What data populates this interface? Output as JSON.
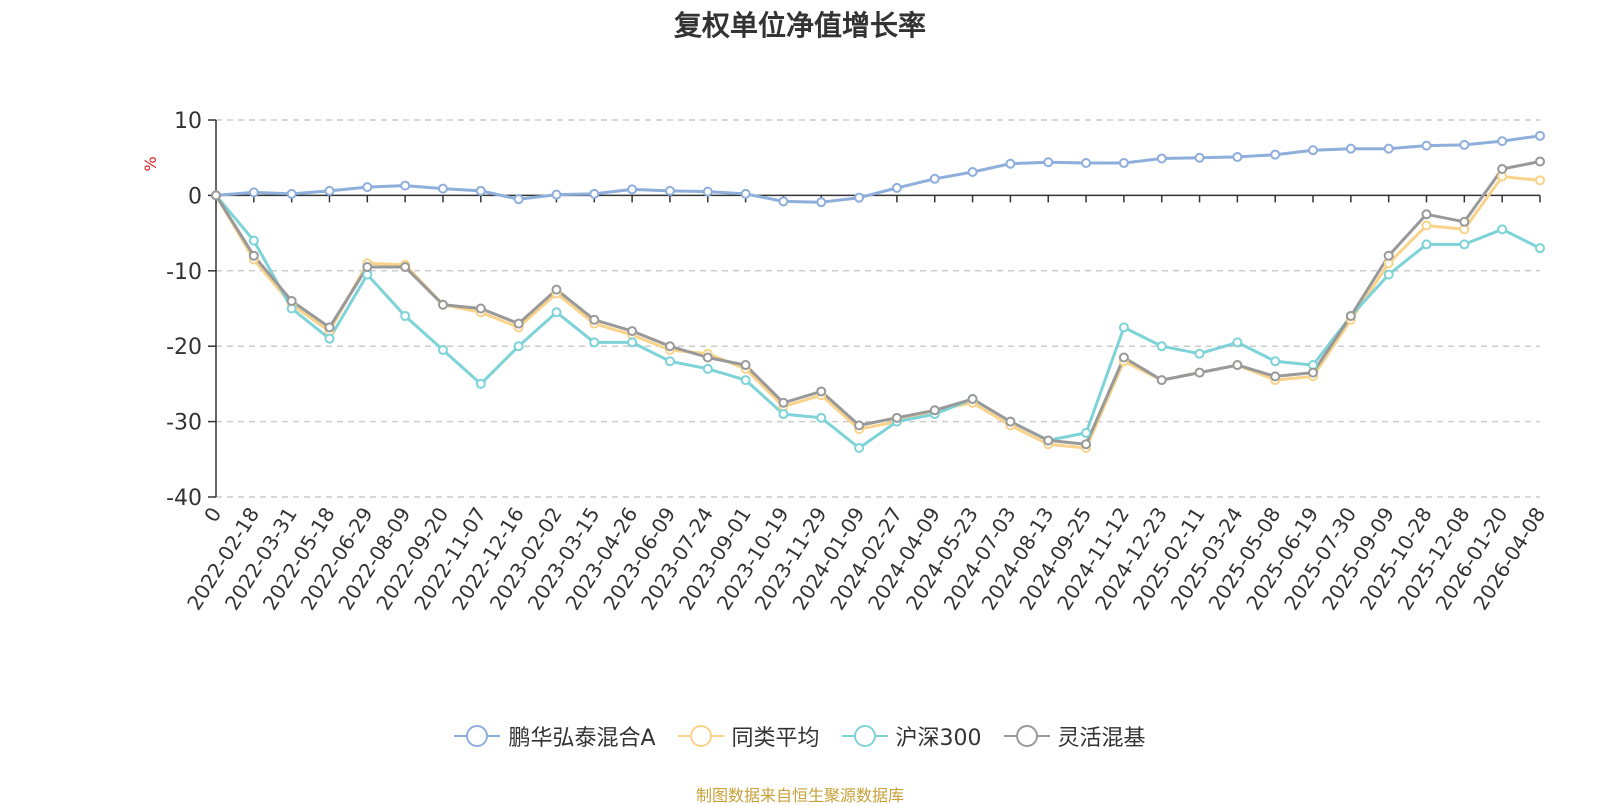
{
  "chart_data": {
    "type": "line",
    "title": "复权单位净值增长率",
    "ylabel": "%",
    "xlabel": "",
    "ylim": [
      -40,
      10
    ],
    "yticks": [
      10,
      0,
      -10,
      -20,
      -30,
      -40
    ],
    "grid": true,
    "legend_position": "bottom-center",
    "x_ticks": [
      "0",
      "2022-02-18",
      "2022-03-31",
      "2022-05-18",
      "2022-06-29",
      "2022-08-09",
      "2022-09-20",
      "2022-11-07",
      "2022-12-16",
      "2023-02-02",
      "2023-03-15",
      "2023-04-26",
      "2023-06-09",
      "2023-07-24",
      "2023-09-01",
      "2023-10-19",
      "2023-11-29",
      "2024-01-09",
      "2024-02-27",
      "2024-04-09",
      "2024-05-23",
      "2024-07-03",
      "2024-08-13",
      "2024-09-25",
      "2024-11-12",
      "2024-12-23",
      "2025-02-11",
      "2025-03-24",
      "2025-05-08",
      "2025-06-19",
      "2025-07-30",
      "2025-09-09",
      "2025-10-28",
      "2025-12-08",
      "2026-01-20",
      "2026-04-08"
    ],
    "series": [
      {
        "name": "鹏华弘泰混合A",
        "color": "#8eaedc",
        "values": [
          0,
          0.4,
          0.2,
          0.6,
          1.1,
          1.3,
          0.9,
          0.6,
          -0.5,
          0.1,
          0.2,
          0.8,
          0.6,
          0.5,
          0.2,
          -0.8,
          -0.9,
          -0.3,
          1.0,
          2.2,
          3.1,
          4.2,
          4.4,
          4.3,
          4.3,
          4.9,
          5.0,
          5.1,
          5.4,
          6.0,
          6.2,
          6.2,
          6.6,
          6.7,
          7.2,
          7.9
        ]
      },
      {
        "name": "同类平均",
        "color": "#f9d38a",
        "values": [
          0,
          -8.5,
          -14.5,
          -18.0,
          -9.0,
          -9.2,
          -14.5,
          -15.5,
          -17.5,
          -13.0,
          -17.0,
          -18.5,
          -20.5,
          -21.0,
          -23.0,
          -28.0,
          -26.5,
          -31.0,
          -30.0,
          -28.5,
          -27.5,
          -30.5,
          -33.0,
          -33.5,
          -22.0,
          -24.5,
          -23.5,
          -22.5,
          -24.5,
          -24.0,
          -16.5,
          -9.0,
          -4.0,
          -4.5,
          2.5,
          2.0
        ]
      },
      {
        "name": "沪深300",
        "color": "#7dd3d8",
        "values": [
          0,
          -6.0,
          -15.0,
          -19.0,
          -10.5,
          -16.0,
          -20.5,
          -25.0,
          -20.0,
          -15.5,
          -19.5,
          -19.5,
          -22.0,
          -23.0,
          -24.5,
          -29.0,
          -29.5,
          -33.5,
          -30.0,
          -29.0,
          -27.0,
          -30.0,
          -32.5,
          -31.5,
          -17.5,
          -20.0,
          -21.0,
          -19.5,
          -22.0,
          -22.5,
          -16.0,
          -10.5,
          -6.5,
          -6.5,
          -4.5,
          -7.0
        ]
      },
      {
        "name": "灵活混基",
        "color": "#999999",
        "values": [
          0,
          -8.0,
          -14.0,
          -17.5,
          -9.5,
          -9.5,
          -14.5,
          -15.0,
          -17.0,
          -12.5,
          -16.5,
          -18.0,
          -20.0,
          -21.5,
          -22.5,
          -27.5,
          -26.0,
          -30.5,
          -29.5,
          -28.5,
          -27.0,
          -30.0,
          -32.5,
          -33.0,
          -21.5,
          -24.5,
          -23.5,
          -22.5,
          -24.0,
          -23.5,
          -16.0,
          -8.0,
          -2.5,
          -3.5,
          3.5,
          4.5
        ]
      }
    ]
  },
  "source_note": "制图数据来自恒生聚源数据库"
}
